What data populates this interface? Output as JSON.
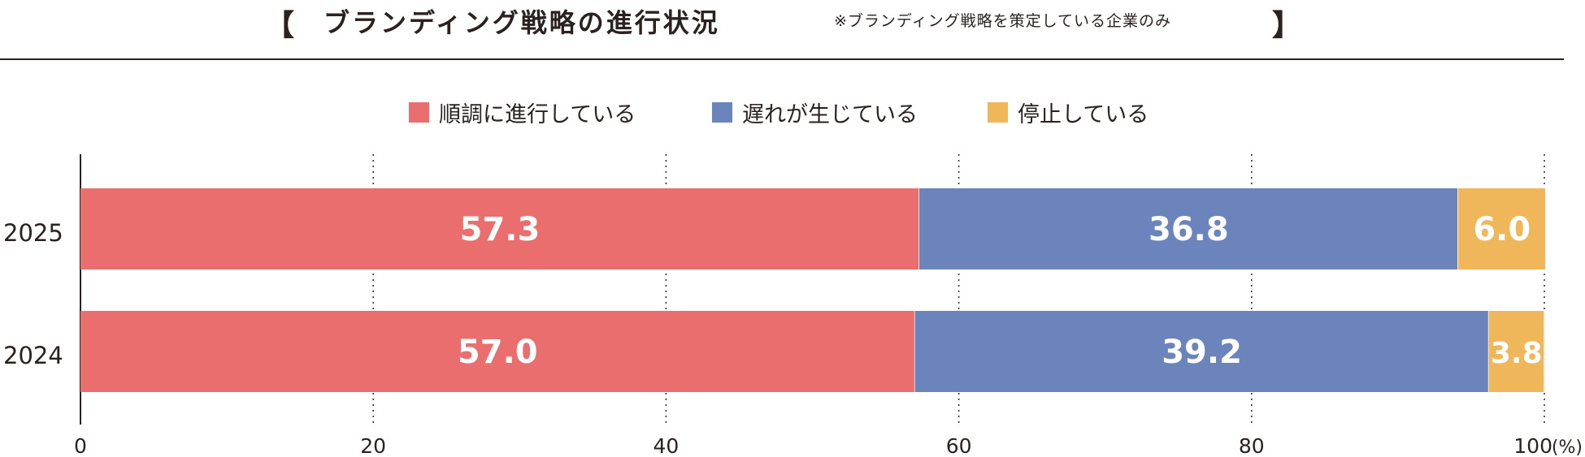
{
  "title": {
    "bracket_left": "【",
    "main": "ブランディング戦略の進行状況",
    "note": "※ブランディング戦略を策定している企業のみ",
    "bracket_right": "】"
  },
  "legend": [
    {
      "label": "順調に進行している",
      "color": "#ea6e6e"
    },
    {
      "label": "遅れが生じている",
      "color": "#6b84bb"
    },
    {
      "label": "停止している",
      "color": "#f0b75a"
    }
  ],
  "chart_data": {
    "type": "bar",
    "orientation": "horizontal",
    "stacked": true,
    "categories": [
      "2025",
      "2024"
    ],
    "series": [
      {
        "name": "順調に進行している",
        "values": [
          57.3,
          57.0
        ],
        "color": "#ea6e6e"
      },
      {
        "name": "遅れが生じている",
        "values": [
          36.8,
          39.2
        ],
        "color": "#6b84bb"
      },
      {
        "name": "停止している",
        "values": [
          6.0,
          3.8
        ],
        "color": "#f0b75a"
      }
    ],
    "data_labels": [
      [
        "57.3",
        "36.8",
        "6.0"
      ],
      [
        "57.0",
        "39.2",
        "3.8"
      ]
    ],
    "xlim": [
      0,
      100
    ],
    "xticks": [
      "0",
      "20",
      "40",
      "60",
      "80",
      "100"
    ],
    "xunit": "(%)",
    "grid": "dotted vertical"
  }
}
